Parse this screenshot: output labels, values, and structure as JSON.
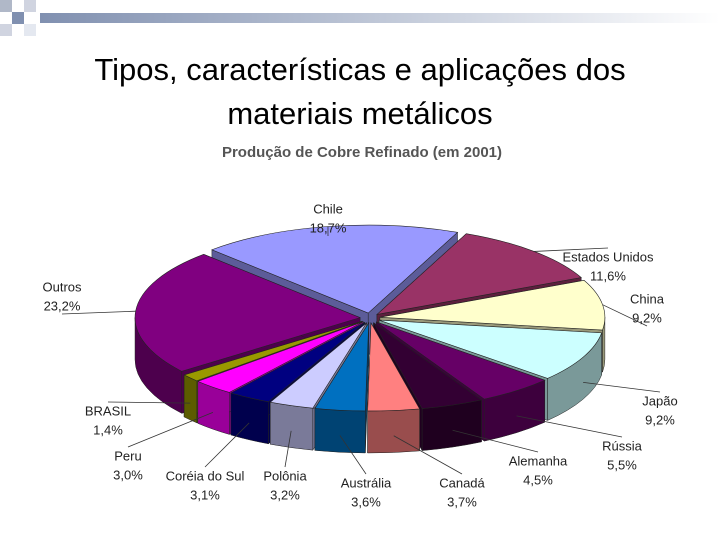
{
  "slide": {
    "title": "Tipos, características e aplicações dos materiais metálicos"
  },
  "chart_data": {
    "type": "pie",
    "title": "Produção de Cobre Refinado (em 2001)",
    "categories": [
      "Chile",
      "Estados Unidos",
      "China",
      "Japão",
      "Rússia",
      "Alemanha",
      "Canadá",
      "Austrália",
      "Polônia",
      "Coréia do Sul",
      "Peru",
      "BRASIL",
      "Outros"
    ],
    "values": [
      18.7,
      11.6,
      9.2,
      9.2,
      5.5,
      4.5,
      3.7,
      3.6,
      3.2,
      3.1,
      3.0,
      1.4,
      23.2
    ],
    "value_labels": [
      "18,7%",
      "11,6%",
      "9,2%",
      "9,2%",
      "5,5%",
      "4,5%",
      "3,7%",
      "3,6%",
      "3,2%",
      "3,1%",
      "3,0%",
      "1,4%",
      "23,2%"
    ],
    "colors": [
      "#9999ff",
      "#993366",
      "#ffffcc",
      "#ccffff",
      "#660066",
      "#330033",
      "#ff8080",
      "#0070c0",
      "#ccccff",
      "#000080",
      "#ff00ff",
      "#999900",
      "#800080"
    ]
  }
}
